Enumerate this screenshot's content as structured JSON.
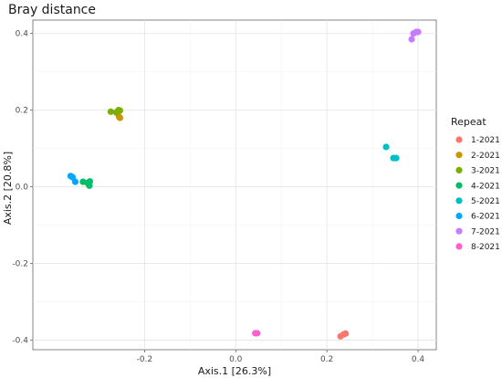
{
  "chart_data": {
    "type": "scatter",
    "title": "Bray distance",
    "xlabel": "Axis.1   [26.3%]",
    "ylabel": "Axis.2   [20.8%]",
    "xlim": [
      -0.445,
      0.44
    ],
    "ylim": [
      -0.425,
      0.435
    ],
    "x_ticks": [
      -0.2,
      0.0,
      0.2,
      0.4
    ],
    "x_tick_labels": [
      "-0.2",
      "0.0",
      "0.2",
      "0.4"
    ],
    "y_ticks": [
      -0.4,
      -0.2,
      0.0,
      0.2,
      0.4
    ],
    "y_tick_labels": [
      "-0.4",
      "-0.2",
      "0.0",
      "0.2",
      "0.4"
    ],
    "grid": true,
    "legend": {
      "title": "Repeat",
      "placement": "right"
    },
    "series": [
      {
        "name": "1-2021",
        "color": "#F8766D",
        "points": [
          [
            0.23,
            -0.39
          ],
          [
            0.237,
            -0.385
          ],
          [
            0.241,
            -0.383
          ]
        ]
      },
      {
        "name": "2-2021",
        "color": "#CD9600",
        "points": [
          [
            -0.254,
            0.18
          ],
          [
            -0.256,
            0.183
          ]
        ]
      },
      {
        "name": "3-2021",
        "color": "#7CAE00",
        "points": [
          [
            -0.274,
            0.196
          ],
          [
            -0.262,
            0.194
          ],
          [
            -0.257,
            0.2
          ],
          [
            -0.254,
            0.199
          ]
        ]
      },
      {
        "name": "4-2021",
        "color": "#00BE67",
        "points": [
          [
            -0.335,
            0.013
          ],
          [
            -0.325,
            0.01
          ],
          [
            -0.32,
            0.014
          ],
          [
            -0.321,
            0.003
          ]
        ]
      },
      {
        "name": "5-2021",
        "color": "#00BFC4",
        "points": [
          [
            0.33,
            0.104
          ],
          [
            0.346,
            0.075
          ],
          [
            0.352,
            0.075
          ]
        ]
      },
      {
        "name": "6-2021",
        "color": "#00A9FF",
        "points": [
          [
            -0.362,
            0.028
          ],
          [
            -0.358,
            0.025
          ],
          [
            -0.352,
            0.013
          ]
        ]
      },
      {
        "name": "7-2021",
        "color": "#C77CFF",
        "points": [
          [
            0.386,
            0.385
          ],
          [
            0.39,
            0.4
          ],
          [
            0.396,
            0.404
          ],
          [
            0.4,
            0.404
          ]
        ]
      },
      {
        "name": "8-2021",
        "color": "#FF61CC",
        "points": [
          [
            0.043,
            -0.382
          ],
          [
            0.047,
            -0.382
          ]
        ]
      }
    ]
  }
}
